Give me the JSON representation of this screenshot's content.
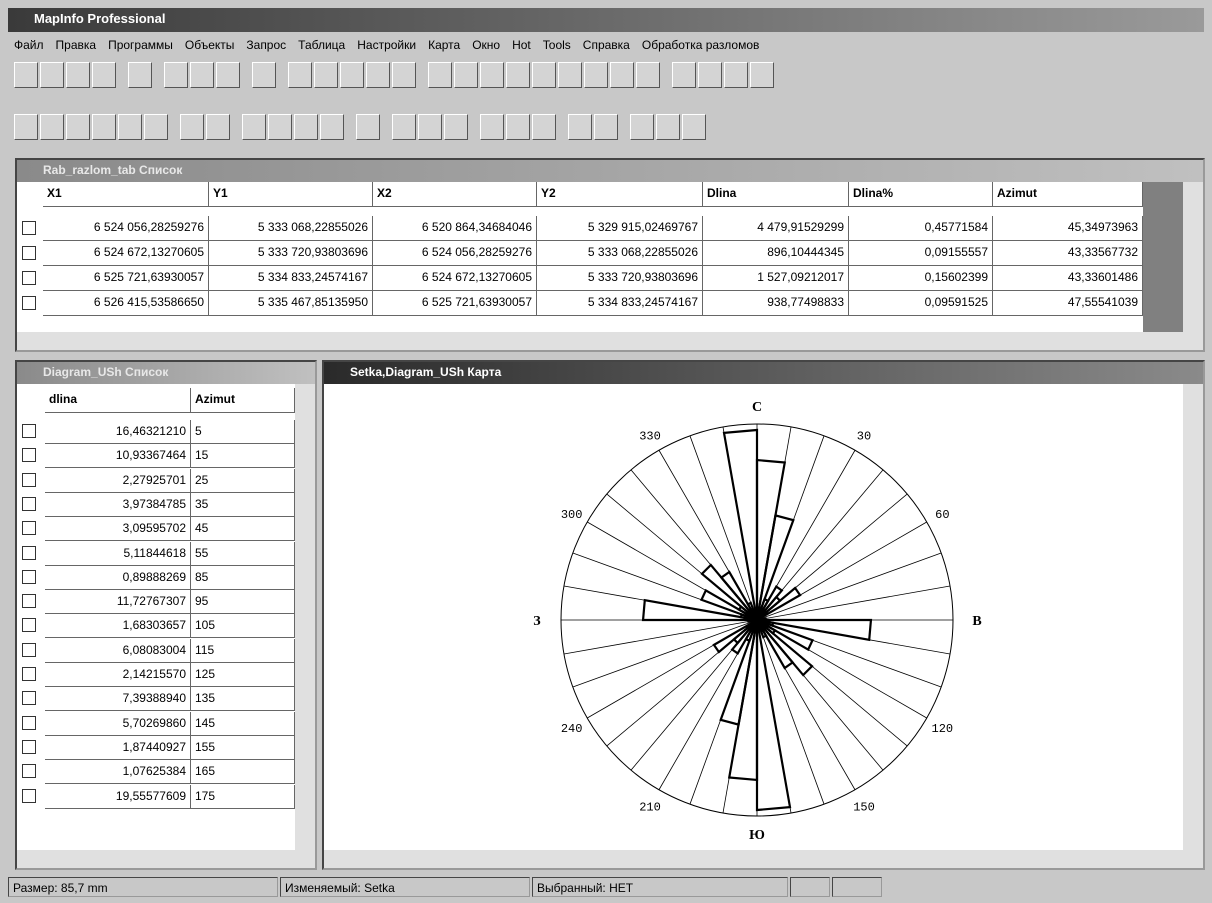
{
  "app": {
    "title": "MapInfo Professional",
    "menu": [
      "Файл",
      "Правка",
      "Программы",
      "Объекты",
      "Запрос",
      "Таблица",
      "Настройки",
      "Карта",
      "Окно",
      "Hot",
      "Tools",
      "Справка",
      "Обработка разломов"
    ]
  },
  "razlom_window": {
    "title": "Rab_razlom_tab Список",
    "columns": [
      "X1",
      "Y1",
      "X2",
      "Y2",
      "Dlina",
      "Dlina%",
      "Azimut"
    ],
    "rows": [
      [
        "6 524 056,28259276",
        "5 333 068,22855026",
        "6 520 864,34684046",
        "5 329 915,02469767",
        "4 479,91529299",
        "0,45771584",
        "45,34973963"
      ],
      [
        "6 524 672,13270605",
        "5 333 720,93803696",
        "6 524 056,28259276",
        "5 333 068,22855026",
        "896,10444345",
        "0,09155557",
        "43,33567732"
      ],
      [
        "6 525 721,63930057",
        "5 334 833,24574167",
        "6 524 672,13270605",
        "5 333 720,93803696",
        "1 527,09212017",
        "0,15602399",
        "43,33601486"
      ],
      [
        "6 526 415,53586650",
        "5 335 467,85135950",
        "6 525 721,63930057",
        "5 334 833,24574167",
        "938,77498833",
        "0,09591525",
        "47,55541039"
      ]
    ]
  },
  "diagram_window": {
    "title": "Diagram_USh Список",
    "columns": [
      "dlina",
      "Azimut"
    ],
    "rows": [
      [
        "16,46321210",
        5
      ],
      [
        "10,93367464",
        15
      ],
      [
        "2,27925701",
        25
      ],
      [
        "3,97384785",
        35
      ],
      [
        "3,09595702",
        45
      ],
      [
        "5,11844618",
        55
      ],
      [
        "0,89888269",
        85
      ],
      [
        "11,72767307",
        95
      ],
      [
        "1,68303657",
        105
      ],
      [
        "6,08083004",
        115
      ],
      [
        "2,14215570",
        125
      ],
      [
        "7,39388940",
        135
      ],
      [
        "5,70269860",
        145
      ],
      [
        "1,87440927",
        155
      ],
      [
        "1,07625384",
        165
      ],
      [
        "19,55577609",
        175
      ]
    ]
  },
  "map_window": {
    "title": "Setka,Diagram_USh Карта",
    "directions": [
      "С",
      "В",
      "Ю",
      "З"
    ],
    "angle_labels": [
      30,
      60,
      120,
      150,
      210,
      240,
      300,
      330
    ]
  },
  "status": [
    "Размер: 85,7 mm",
    "Изменяемый: Setka",
    "Выбранный: НЕТ"
  ]
}
